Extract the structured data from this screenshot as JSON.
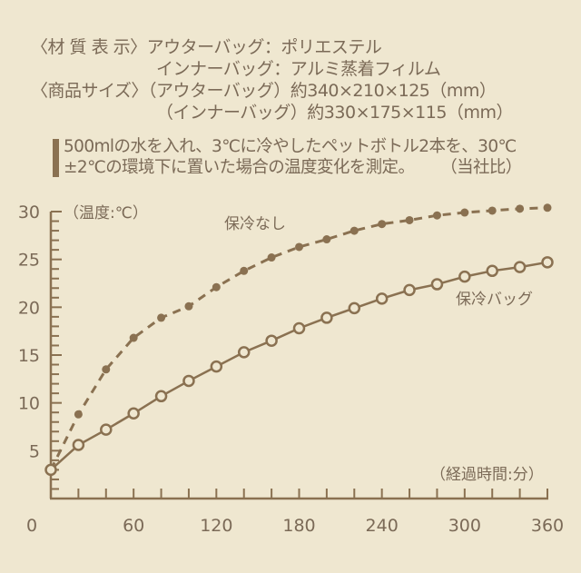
{
  "spec": {
    "material_label": "〈材 質 表 示〉",
    "outer_material": "アウターバッグ：ポリエステル",
    "inner_material": "インナーバッグ：アルミ蒸着フィルム",
    "size_label": "〈商品サイズ〉",
    "outer_size": "（アウターバッグ）約340×210×125（mm）",
    "inner_size": "（インナーバッグ）約330×175×115（mm）"
  },
  "note": {
    "line1": "500mlの水を入れ、3℃に冷やしたペットボトル2本を、30℃",
    "line2": "±2℃の環境下に置いた場合の温度変化を測定。",
    "reference": "（当社比）"
  },
  "colors": {
    "background": "#efe7d0",
    "line": "#8a7151",
    "text": "#7b6a57"
  },
  "chart_data": {
    "type": "line",
    "title": "",
    "xlabel": "（経過時間:分）",
    "ylabel": "（温度:℃）",
    "xlim": [
      0,
      360
    ],
    "ylim": [
      0,
      30
    ],
    "x_ticks": [
      0,
      60,
      120,
      180,
      240,
      300,
      360
    ],
    "y_ticks": [
      5,
      10,
      15,
      20,
      25,
      30
    ],
    "grid": false,
    "x": [
      0,
      20,
      40,
      60,
      80,
      100,
      120,
      140,
      160,
      180,
      200,
      220,
      240,
      260,
      280,
      300,
      320,
      340,
      360
    ],
    "series": [
      {
        "name": "保冷なし",
        "style": "dashed, filled markers",
        "values": [
          3.0,
          8.8,
          13.5,
          16.8,
          18.9,
          20.1,
          22.1,
          23.8,
          25.2,
          26.3,
          27.1,
          28.0,
          28.7,
          29.1,
          29.6,
          29.9,
          30.1,
          30.3,
          30.4
        ]
      },
      {
        "name": "保冷バッグ",
        "style": "solid, hollow markers",
        "values": [
          3.0,
          5.6,
          7.2,
          8.9,
          10.7,
          12.3,
          13.8,
          15.3,
          16.5,
          17.8,
          18.9,
          19.9,
          20.9,
          21.8,
          22.4,
          23.2,
          23.8,
          24.2,
          24.7
        ]
      }
    ],
    "annotations": [
      "保冷なし",
      "保冷バッグ"
    ]
  }
}
